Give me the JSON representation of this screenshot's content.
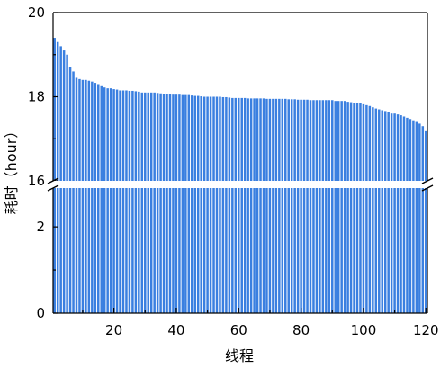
{
  "chart_data": {
    "type": "bar",
    "title": "",
    "xlabel": "线程",
    "ylabel": "耗时（hour）",
    "color": "#3a7fe0",
    "axis_break": {
      "lower_range": [
        0,
        2.9
      ],
      "upper_range": [
        16,
        20
      ]
    },
    "xlim": [
      0.5,
      120.5
    ],
    "x_ticks": [
      20,
      40,
      60,
      80,
      100,
      120
    ],
    "x_tick_labels": [
      "20",
      "40",
      "60",
      "80",
      "100",
      "120"
    ],
    "y_ticks_lower": [
      0,
      2
    ],
    "y_tick_labels_lower": [
      "0",
      "2"
    ],
    "y_ticks_upper": [
      16,
      18,
      20
    ],
    "y_tick_labels_upper": [
      "16",
      "18",
      "20"
    ],
    "x": [
      1,
      2,
      3,
      4,
      5,
      6,
      7,
      8,
      9,
      10,
      11,
      12,
      13,
      14,
      15,
      16,
      17,
      18,
      19,
      20,
      21,
      22,
      23,
      24,
      25,
      26,
      27,
      28,
      29,
      30,
      31,
      32,
      33,
      34,
      35,
      36,
      37,
      38,
      39,
      40,
      41,
      42,
      43,
      44,
      45,
      46,
      47,
      48,
      49,
      50,
      51,
      52,
      53,
      54,
      55,
      56,
      57,
      58,
      59,
      60,
      61,
      62,
      63,
      64,
      65,
      66,
      67,
      68,
      69,
      70,
      71,
      72,
      73,
      74,
      75,
      76,
      77,
      78,
      79,
      80,
      81,
      82,
      83,
      84,
      85,
      86,
      87,
      88,
      89,
      90,
      91,
      92,
      93,
      94,
      95,
      96,
      97,
      98,
      99,
      100,
      101,
      102,
      103,
      104,
      105,
      106,
      107,
      108,
      109,
      110,
      111,
      112,
      113,
      114,
      115,
      116,
      117,
      118,
      119,
      120
    ],
    "values": [
      19.4,
      19.3,
      19.2,
      19.1,
      19.0,
      18.7,
      18.6,
      18.45,
      18.42,
      18.4,
      18.4,
      18.38,
      18.36,
      18.33,
      18.3,
      18.25,
      18.22,
      18.2,
      18.2,
      18.18,
      18.17,
      18.15,
      18.15,
      18.15,
      18.14,
      18.14,
      18.13,
      18.12,
      18.1,
      18.1,
      18.1,
      18.1,
      18.1,
      18.09,
      18.08,
      18.07,
      18.06,
      18.06,
      18.05,
      18.05,
      18.05,
      18.04,
      18.04,
      18.04,
      18.03,
      18.02,
      18.02,
      18.01,
      18.0,
      18.0,
      18.0,
      18.0,
      18.0,
      18.0,
      17.99,
      17.99,
      17.98,
      17.97,
      17.97,
      17.97,
      17.97,
      17.97,
      17.96,
      17.96,
      17.96,
      17.96,
      17.96,
      17.96,
      17.95,
      17.95,
      17.95,
      17.95,
      17.95,
      17.95,
      17.95,
      17.94,
      17.94,
      17.94,
      17.93,
      17.93,
      17.93,
      17.93,
      17.92,
      17.92,
      17.92,
      17.92,
      17.92,
      17.92,
      17.92,
      17.92,
      17.9,
      17.9,
      17.9,
      17.9,
      17.88,
      17.87,
      17.86,
      17.85,
      17.84,
      17.82,
      17.8,
      17.78,
      17.75,
      17.72,
      17.7,
      17.68,
      17.66,
      17.63,
      17.6,
      17.6,
      17.58,
      17.56,
      17.53,
      17.5,
      17.47,
      17.44,
      17.4,
      17.36,
      17.3,
      17.18
    ]
  }
}
